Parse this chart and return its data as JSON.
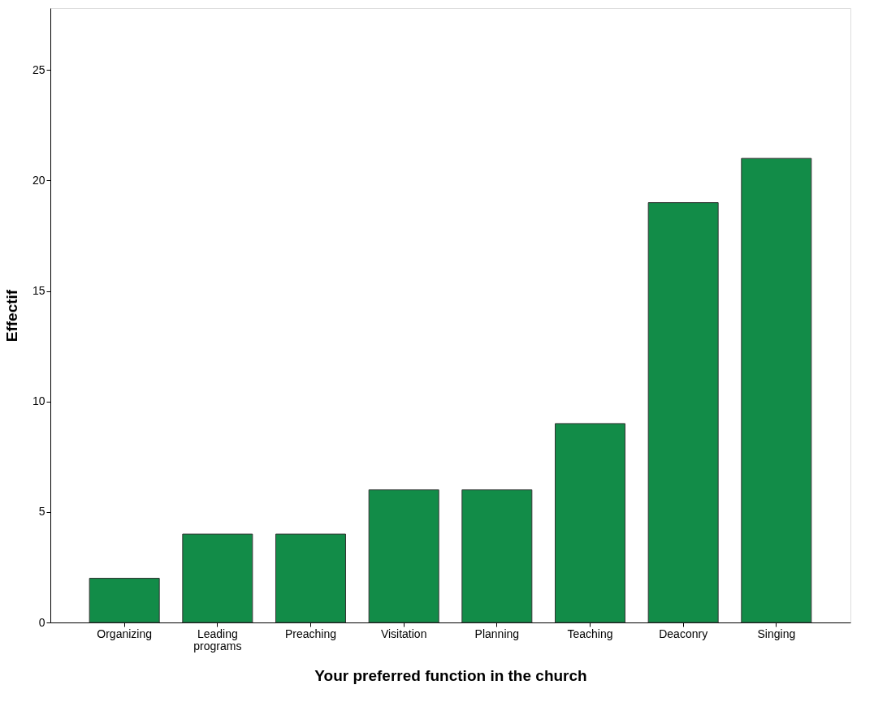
{
  "chart_data": {
    "type": "bar",
    "xlabel": "Your preferred function in the church",
    "ylabel": "Effectif",
    "categories": [
      "Organizing",
      "Leading programs",
      "Preaching",
      "Visitation",
      "Planning",
      "Teaching",
      "Deaconry",
      "Singing"
    ],
    "values": [
      2,
      4,
      4,
      6,
      6,
      9,
      19,
      21
    ],
    "color": "#128c48",
    "ylim": [
      0,
      27.8
    ],
    "yticks": [
      0,
      5,
      10,
      15,
      20,
      25
    ]
  }
}
